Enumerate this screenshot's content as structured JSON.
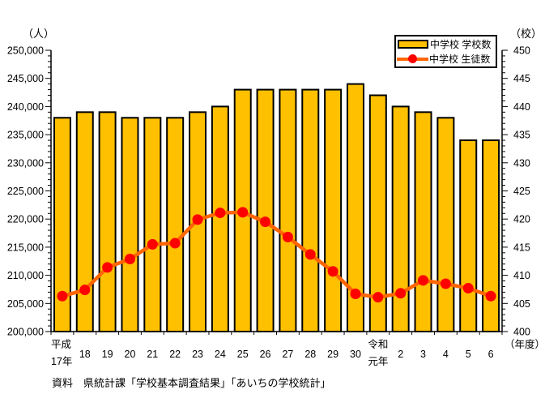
{
  "chart_data": {
    "type": "combo-bar-line",
    "categories": [
      "平成17年",
      "18",
      "19",
      "20",
      "21",
      "22",
      "23",
      "24",
      "25",
      "26",
      "27",
      "28",
      "29",
      "30",
      "令和元年",
      "2",
      "3",
      "4",
      "5",
      "6"
    ],
    "categories_display": [
      [
        "平成",
        "17年"
      ],
      [
        "18"
      ],
      [
        "19"
      ],
      [
        "20"
      ],
      [
        "21"
      ],
      [
        "22"
      ],
      [
        "23"
      ],
      [
        "24"
      ],
      [
        "25"
      ],
      [
        "26"
      ],
      [
        "27"
      ],
      [
        "28"
      ],
      [
        "29"
      ],
      [
        "30"
      ],
      [
        "令和",
        "元年"
      ],
      [
        "2"
      ],
      [
        "3"
      ],
      [
        "4"
      ],
      [
        "5"
      ],
      [
        "6"
      ]
    ],
    "series": [
      {
        "name": "中学校 学校数",
        "type": "bar",
        "axis": "right",
        "values": [
          438,
          439,
          439,
          438,
          438,
          438,
          439,
          440,
          443,
          443,
          443,
          443,
          443,
          444,
          442,
          440,
          439,
          438,
          434,
          434
        ],
        "color": "#FFC000",
        "border_color": "#000000"
      },
      {
        "name": "中学校 生徒数",
        "type": "line",
        "axis": "left",
        "values": [
          206300,
          207400,
          211400,
          212900,
          215500,
          215700,
          219900,
          221100,
          221200,
          219500,
          216800,
          213700,
          210700,
          206700,
          206100,
          206800,
          209100,
          208500,
          207700,
          206300
        ],
        "line_color": "#FF6600",
        "marker_color": "#FF0000"
      }
    ],
    "left_axis": {
      "label": "（人）",
      "min": 200000,
      "max": 250000,
      "tick_step": 5000,
      "minor_step": 1000,
      "tick_labels": [
        "250,000",
        "245,000",
        "240,000",
        "235,000",
        "230,000",
        "225,000",
        "220,000",
        "215,000",
        "210,000",
        "205,000",
        "200,000"
      ]
    },
    "right_axis": {
      "label": "（校）",
      "min": 400,
      "max": 450,
      "tick_step": 5,
      "minor_step": 1,
      "tick_labels": [
        "450",
        "445",
        "440",
        "435",
        "430",
        "425",
        "420",
        "415",
        "410",
        "405",
        "400"
      ]
    },
    "x_axis_unit": "（年度）",
    "legend_position": "top-right",
    "grid": false,
    "source": "資料　県統計課「学校基本調査結果」「あいちの学校統計」"
  }
}
